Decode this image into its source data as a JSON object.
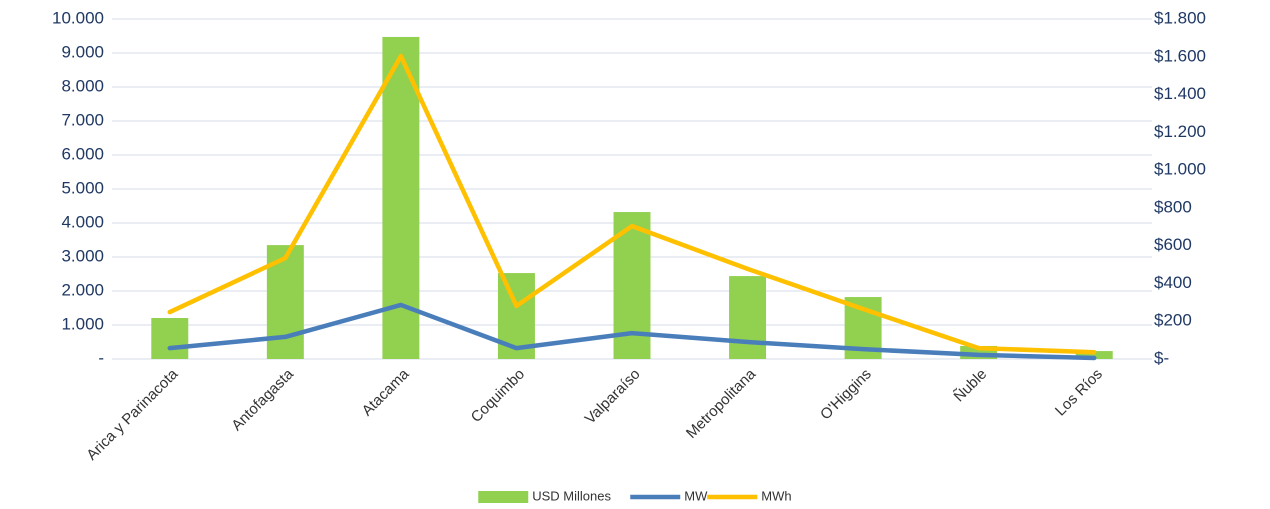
{
  "chart_data": {
    "type": "bar-line",
    "categories": [
      "Arica y Parinacota",
      "Antofagasta",
      "Atacama",
      "Coquimbo",
      "Valparaíso",
      "Metropolitana",
      "O'Higgins",
      "Ñuble",
      "Los Ríos"
    ],
    "series": [
      {
        "name": "USD Millones",
        "type": "bar",
        "axis": "y2",
        "color": "#92d050",
        "values": [
          217,
          603,
          1705,
          455,
          778,
          439,
          328,
          69,
          42
        ]
      },
      {
        "name": "MW",
        "type": "line",
        "color": "#4a7ebb",
        "values": [
          320,
          650,
          1590,
          320,
          760,
          500,
          290,
          120,
          30
        ]
      },
      {
        "name": "MWh",
        "type": "line",
        "color": "#ffc000",
        "values": [
          1380,
          2970,
          8910,
          1560,
          3910,
          2650,
          1470,
          320,
          200
        ]
      }
    ],
    "ylim": [
      0,
      10000
    ],
    "yticks": [
      {
        "value": 0,
        "label": "-"
      },
      {
        "value": 1000,
        "label": "1.000"
      },
      {
        "value": 2000,
        "label": "2.000"
      },
      {
        "value": 3000,
        "label": "3.000"
      },
      {
        "value": 4000,
        "label": "4.000"
      },
      {
        "value": 5000,
        "label": "5.000"
      },
      {
        "value": 6000,
        "label": "6.000"
      },
      {
        "value": 7000,
        "label": "7.000"
      },
      {
        "value": 8000,
        "label": "8.000"
      },
      {
        "value": 9000,
        "label": "9.000"
      },
      {
        "value": 10000,
        "label": "10.000"
      }
    ],
    "y2lim": [
      0,
      1800
    ],
    "y2ticks": [
      {
        "value": 0,
        "label": "$-"
      },
      {
        "value": 200,
        "label": "$200"
      },
      {
        "value": 400,
        "label": "$400"
      },
      {
        "value": 600,
        "label": "$600"
      },
      {
        "value": 800,
        "label": "$800"
      },
      {
        "value": 1000,
        "label": "$1.000"
      },
      {
        "value": 1200,
        "label": "$1.200"
      },
      {
        "value": 1400,
        "label": "$1.400"
      },
      {
        "value": 1600,
        "label": "$1.600"
      },
      {
        "value": 1800,
        "label": "$1.800"
      }
    ],
    "grid": true,
    "legend": "bottom"
  }
}
